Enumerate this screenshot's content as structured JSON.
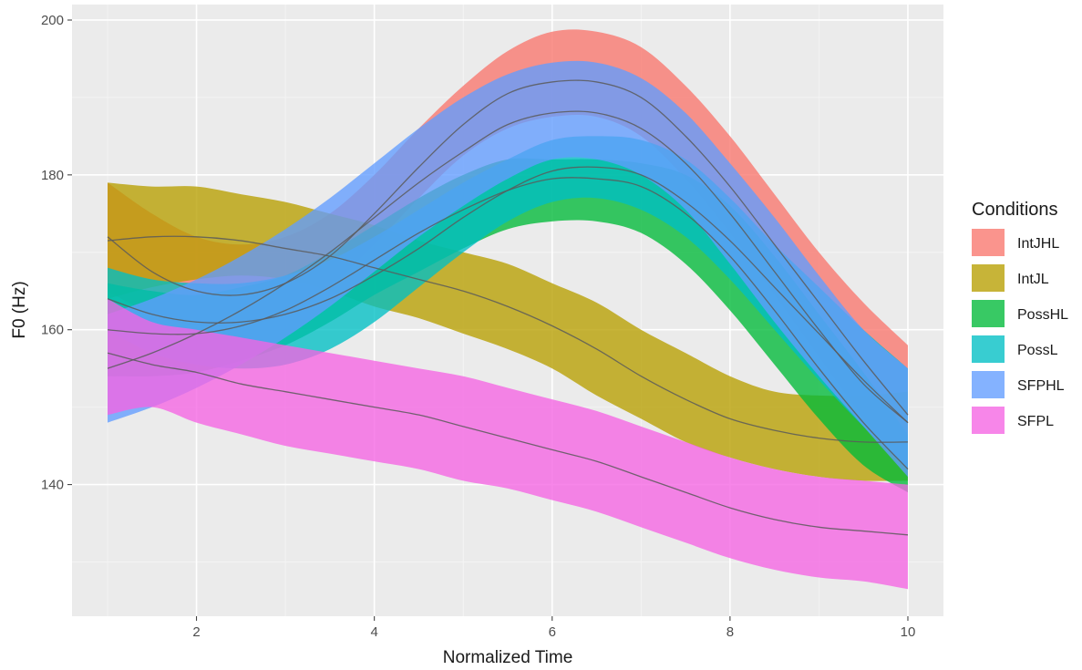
{
  "chart_data": {
    "type": "area",
    "xlabel": "Normalized Time",
    "ylabel": "F0 (Hz)",
    "xlim": [
      0.6,
      10.4
    ],
    "ylim": [
      123,
      202
    ],
    "x_ticks": [
      2,
      4,
      6,
      8,
      10
    ],
    "y_ticks": [
      140,
      160,
      180,
      200
    ],
    "grid": true,
    "legend": {
      "title": "Conditions",
      "position": "right"
    },
    "x": [
      1,
      1.5,
      2,
      2.5,
      3,
      3.5,
      4,
      4.5,
      5,
      5.5,
      6,
      6.5,
      7,
      7.5,
      8,
      8.5,
      9,
      9.5,
      10
    ],
    "series": [
      {
        "name": "IntJHL",
        "color": "#F8766D",
        "mean": [
          172,
          167.5,
          165,
          164.5,
          166,
          169.5,
          175,
          181,
          186.5,
          190.5,
          192,
          192,
          190,
          185,
          178.5,
          171,
          163.5,
          156,
          149
        ],
        "lower": [
          165,
          162,
          160.5,
          160.5,
          162,
          165.5,
          171,
          177,
          182.5,
          186,
          187.5,
          187.5,
          185,
          179.5,
          172.5,
          164.5,
          156.5,
          148.5,
          141
        ],
        "upper": [
          179,
          175,
          172,
          171,
          172,
          175,
          180,
          186,
          191.5,
          196,
          198.5,
          198.5,
          196.5,
          191.5,
          185,
          177.5,
          170,
          163.5,
          158
        ]
      },
      {
        "name": "IntJL",
        "color": "#B79F00",
        "mean": [
          171.5,
          172,
          172,
          171.5,
          170.5,
          169.5,
          168,
          166.5,
          165,
          163,
          160.5,
          157.5,
          154,
          151,
          148.5,
          147,
          146,
          145.5,
          145.5
        ],
        "lower": [
          164,
          165.5,
          166.5,
          167,
          166.5,
          165,
          163,
          161.5,
          159.5,
          157.5,
          155,
          151.5,
          148.5,
          145.5,
          143.5,
          142,
          141,
          140.5,
          140.5
        ],
        "upper": [
          179,
          178.5,
          178.5,
          177.5,
          176.5,
          175,
          173.5,
          171.5,
          170,
          168.5,
          166,
          163.5,
          160,
          157,
          154,
          152,
          151.5,
          151.5,
          152
        ]
      },
      {
        "name": "PossHL",
        "color": "#00BA38",
        "mean": [
          160,
          159.5,
          159.5,
          160.5,
          162.5,
          165.5,
          169,
          172.5,
          175.5,
          178,
          179.5,
          179.5,
          178.5,
          175,
          169.5,
          162.5,
          155,
          148,
          142
        ],
        "lower": [
          154,
          154,
          154.5,
          156,
          158,
          161,
          164.5,
          167.5,
          170.5,
          173,
          174,
          174,
          172.5,
          168.5,
          162.5,
          155.5,
          148.5,
          142.5,
          139
        ],
        "upper": [
          166,
          165,
          164.5,
          165.5,
          167,
          170,
          173.5,
          177,
          180,
          182,
          182,
          182,
          181.5,
          180,
          176,
          169.5,
          162,
          154.5,
          146.5
        ]
      },
      {
        "name": "PossL",
        "color": "#00BFC4",
        "mean": [
          164,
          162,
          161,
          161,
          162,
          164,
          167,
          170.5,
          174.5,
          178,
          180.5,
          181,
          180,
          176.5,
          171.5,
          165.5,
          159.5,
          153.5,
          148
        ],
        "lower": [
          160,
          157,
          155.5,
          155,
          155.5,
          157.5,
          161,
          165.5,
          170,
          174,
          176.5,
          177,
          175.5,
          172,
          166.5,
          160,
          153.5,
          147.5,
          142
        ],
        "upper": [
          168,
          166.5,
          166,
          166,
          167,
          169,
          172,
          175.5,
          179,
          182,
          184.5,
          185,
          184.5,
          182,
          177,
          171,
          165.5,
          160,
          155
        ]
      },
      {
        "name": "SFPHL",
        "color": "#619CFF",
        "mean": [
          155,
          157,
          159.5,
          162.5,
          166,
          170,
          174.5,
          179,
          183,
          186.5,
          188,
          188,
          186,
          181.5,
          175,
          167.5,
          160,
          153,
          148
        ],
        "lower": [
          148,
          150,
          152.5,
          155.5,
          159,
          163,
          167.5,
          172,
          176,
          179.5,
          182,
          182,
          180,
          175.5,
          168.5,
          161,
          154,
          147.5,
          141
        ],
        "upper": [
          162,
          164,
          166.5,
          169.5,
          173,
          177,
          181.5,
          186,
          190,
          193,
          194.5,
          194.5,
          192.5,
          188,
          181.5,
          174.5,
          167,
          160,
          155
        ]
      },
      {
        "name": "SFPL",
        "color": "#F564E3",
        "mean": [
          157,
          155.5,
          154.5,
          153,
          152,
          151,
          150,
          149,
          147.5,
          146,
          144.5,
          143,
          141,
          139,
          137,
          135.5,
          134.5,
          134,
          133.5
        ],
        "lower": [
          149,
          150,
          148,
          146.5,
          145,
          144,
          143,
          142,
          140.5,
          139.5,
          138,
          136.5,
          134.5,
          132.5,
          130.5,
          129,
          128,
          127.5,
          126.5
        ],
        "upper": [
          164,
          161,
          160,
          159,
          158,
          157,
          156,
          155,
          154,
          152.5,
          151,
          149.5,
          147.5,
          145.5,
          143.5,
          142,
          141,
          140.5,
          140
        ]
      }
    ]
  }
}
